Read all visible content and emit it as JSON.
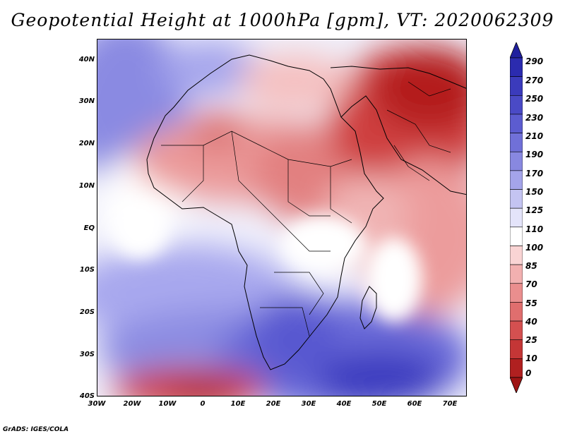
{
  "title": "Geopotential Height at 1000hPa [gpm], VT: 2020062309",
  "credit": "GrADS: IGES/COLA",
  "map": {
    "projection": "latlon",
    "lon_range": [
      -30,
      75
    ],
    "lat_range": [
      -40,
      45
    ],
    "field": "geopotential height 1000hPa",
    "coastlines": true,
    "country_borders": true
  },
  "axes": {
    "y_ticks": [
      "40N",
      "30N",
      "20N",
      "10N",
      "EQ",
      "10S",
      "20S",
      "30S",
      "40S"
    ],
    "x_ticks": [
      "30W",
      "20W",
      "10W",
      "0",
      "10E",
      "20E",
      "30E",
      "40E",
      "50E",
      "60E",
      "70E"
    ]
  },
  "colorbar": {
    "levels": [
      "290",
      "270",
      "250",
      "230",
      "210",
      "190",
      "170",
      "150",
      "125",
      "110",
      "100",
      "85",
      "70",
      "55",
      "40",
      "25",
      "10",
      "0"
    ],
    "colors": [
      "#1f1f9e",
      "#2b2baf",
      "#3b3bbc",
      "#4a4ac6",
      "#5c5cd0",
      "#7070d8",
      "#8888e0",
      "#a4a4ea",
      "#c4c4f2",
      "#e4e4fa",
      "#ffffff",
      "#f9d4d4",
      "#f2b0b0",
      "#ea8e8e",
      "#e06e6e",
      "#d45050",
      "#c43636",
      "#b02020",
      "#9e1414"
    ]
  }
}
